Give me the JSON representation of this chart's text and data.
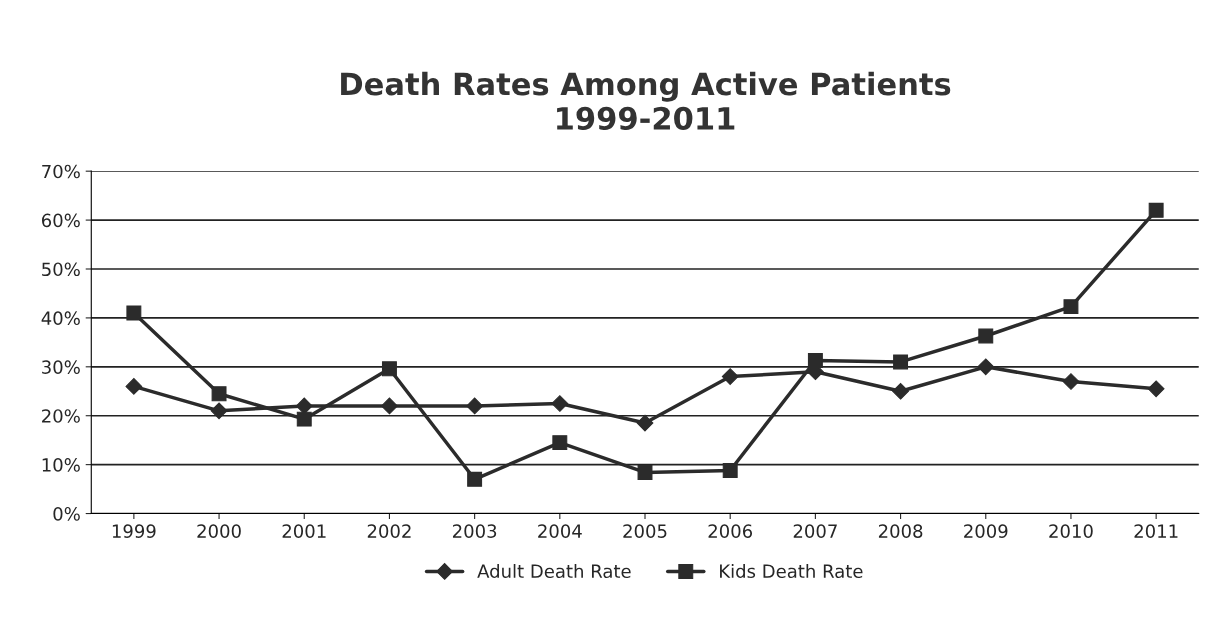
{
  "chart_data": {
    "type": "line",
    "title": "Death Rates Among Active Patients\n1999-2011",
    "categories": [
      "1999",
      "2000",
      "2001",
      "2002",
      "2003",
      "2004",
      "2005",
      "2006",
      "2007",
      "2008",
      "2009",
      "2010",
      "2011"
    ],
    "series": [
      {
        "name": "Adult Death Rate",
        "color": "#2b2b2b",
        "marker": "diamond",
        "values": [
          26,
          21,
          22,
          22,
          22,
          22.5,
          18.5,
          28,
          29,
          25,
          30,
          27,
          25.5
        ]
      },
      {
        "name": "Kids Death Rate",
        "color": "#2b2b2b",
        "marker": "square",
        "values": [
          41,
          24.5,
          19.3,
          29.6,
          7,
          14.5,
          8.4,
          8.8,
          31.3,
          31,
          36.3,
          42.3,
          62
        ]
      }
    ],
    "ylim": [
      0,
      70
    ],
    "yticks": [
      {
        "value": 0,
        "label": "0%"
      },
      {
        "value": 10,
        "label": "10%"
      },
      {
        "value": 20,
        "label": "20%"
      },
      {
        "value": 30,
        "label": "30%"
      },
      {
        "value": 40,
        "label": "40%"
      },
      {
        "value": 50,
        "label": "50%"
      },
      {
        "value": 60,
        "label": "60%"
      },
      {
        "value": 70,
        "label": "70%"
      }
    ],
    "grid": "y",
    "legend": "bottom",
    "line_style": "solid"
  }
}
